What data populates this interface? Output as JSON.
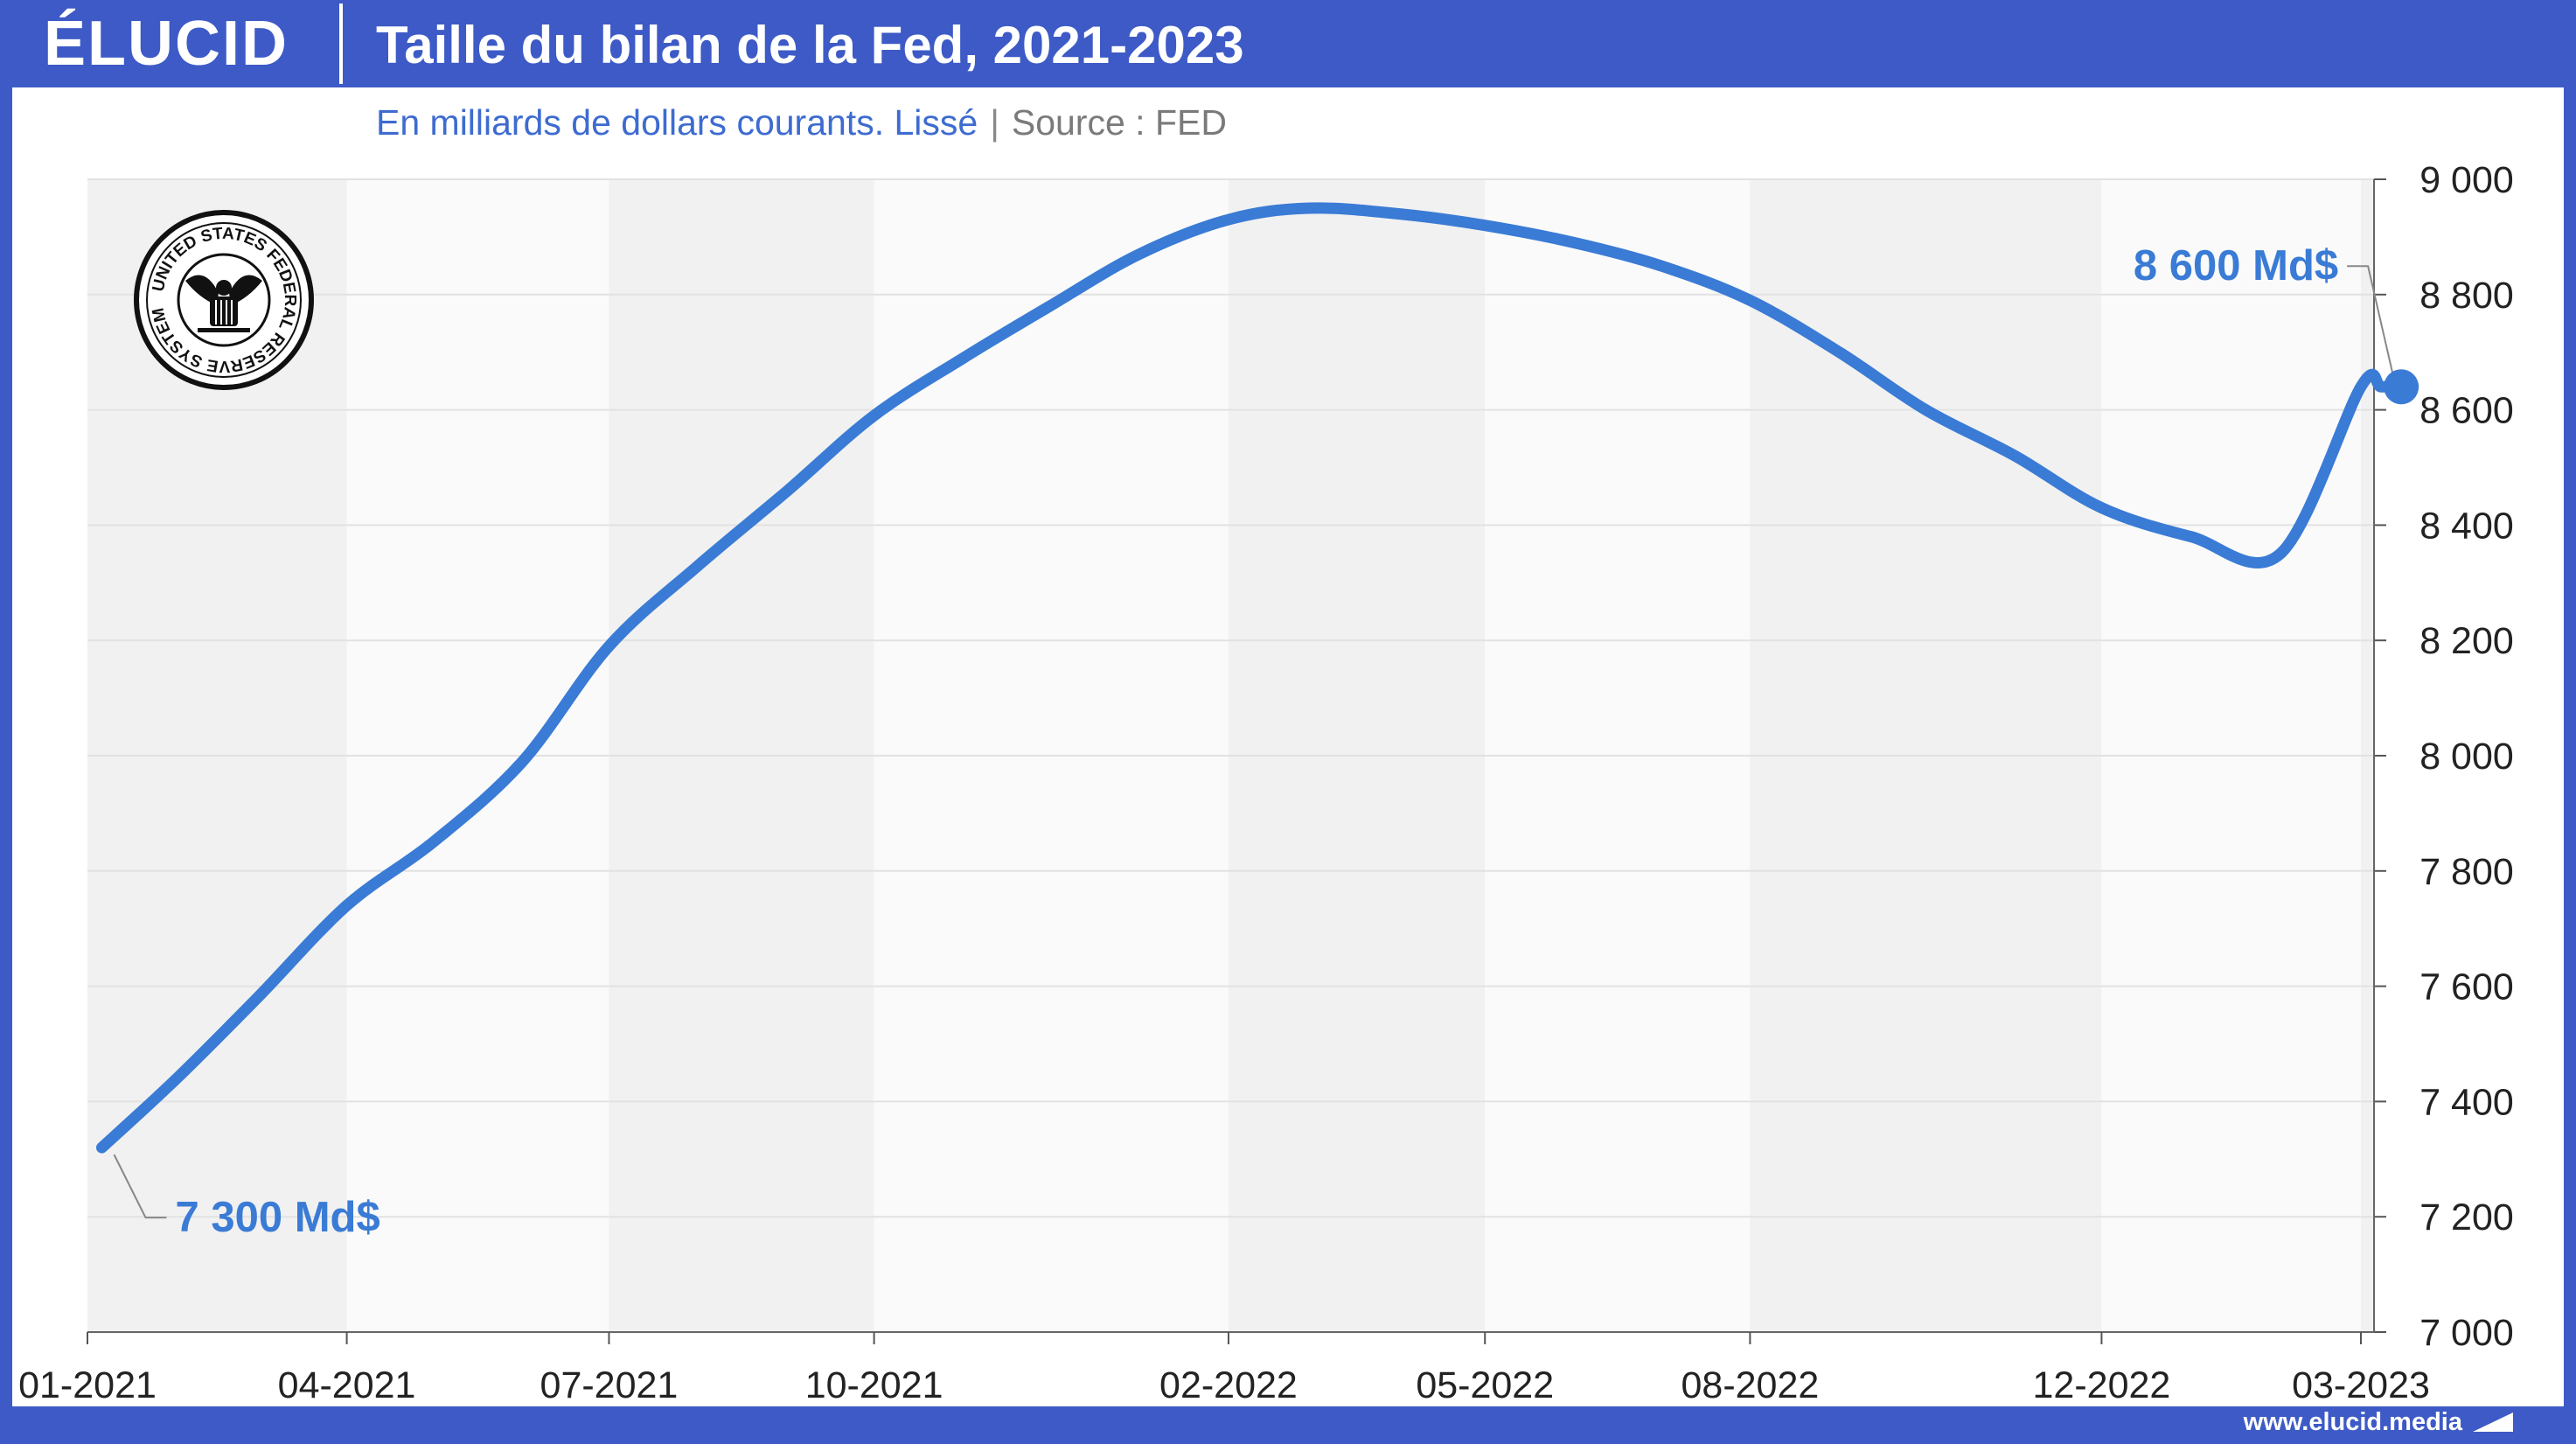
{
  "brand": "ÉLUCID",
  "title": "Taille du bilan de la Fed, 2021-2023",
  "subtitle": "En milliards de dollars courants. Lissé",
  "source": "Source : FED",
  "footer_url": "www.elucid.media",
  "seal_text": "UNITED STATES FEDERAL RESERVE SYSTEM",
  "colors": {
    "frame": "#3d5ac6",
    "line": "#3a7bd5",
    "label": "#3a7bd5",
    "band": "#f2f2f2"
  },
  "chart_data": {
    "type": "line",
    "title": "Taille du bilan de la Fed, 2021-2023",
    "xlabel": "",
    "ylabel": "",
    "x_ticks": [
      "01-2021",
      "04-2021",
      "07-2021",
      "10-2021",
      "02-2022",
      "05-2022",
      "08-2022",
      "12-2022",
      "03-2023"
    ],
    "y_ticks": [
      "7 000",
      "7 200",
      "7 400",
      "7 600",
      "7 800",
      "8 000",
      "8 200",
      "8 400",
      "8 600",
      "8 800",
      "9 000"
    ],
    "ylim": [
      7000,
      9000
    ],
    "y_axis_side": "right",
    "grid": true,
    "series": [
      {
        "x": [
          "2021-01-06",
          "2021-02-01",
          "2021-03-01",
          "2021-04-01",
          "2021-05-01",
          "2021-06-01",
          "2021-07-01",
          "2021-08-01",
          "2021-09-01",
          "2021-10-01",
          "2021-11-01",
          "2021-12-01",
          "2022-01-01",
          "2022-02-01",
          "2022-03-01",
          "2022-04-01",
          "2022-05-01",
          "2022-06-01",
          "2022-07-01",
          "2022-08-01",
          "2022-09-01",
          "2022-10-01",
          "2022-11-01",
          "2022-12-01",
          "2023-01-01",
          "2023-02-01",
          "2023-03-01",
          "2023-03-08",
          "2023-03-15"
        ],
        "y": [
          7320,
          7440,
          7580,
          7740,
          7850,
          7990,
          8190,
          8330,
          8460,
          8590,
          8690,
          8780,
          8870,
          8930,
          8950,
          8940,
          8920,
          8890,
          8850,
          8790,
          8700,
          8600,
          8520,
          8430,
          8380,
          8350,
          8640,
          8640,
          8640
        ]
      }
    ],
    "annotations": [
      {
        "text": "7 300 Md$",
        "x": "2021-01-06",
        "y": 7320
      },
      {
        "text": "8 600 Md$",
        "x": "2023-03-15",
        "y": 8640
      }
    ]
  }
}
